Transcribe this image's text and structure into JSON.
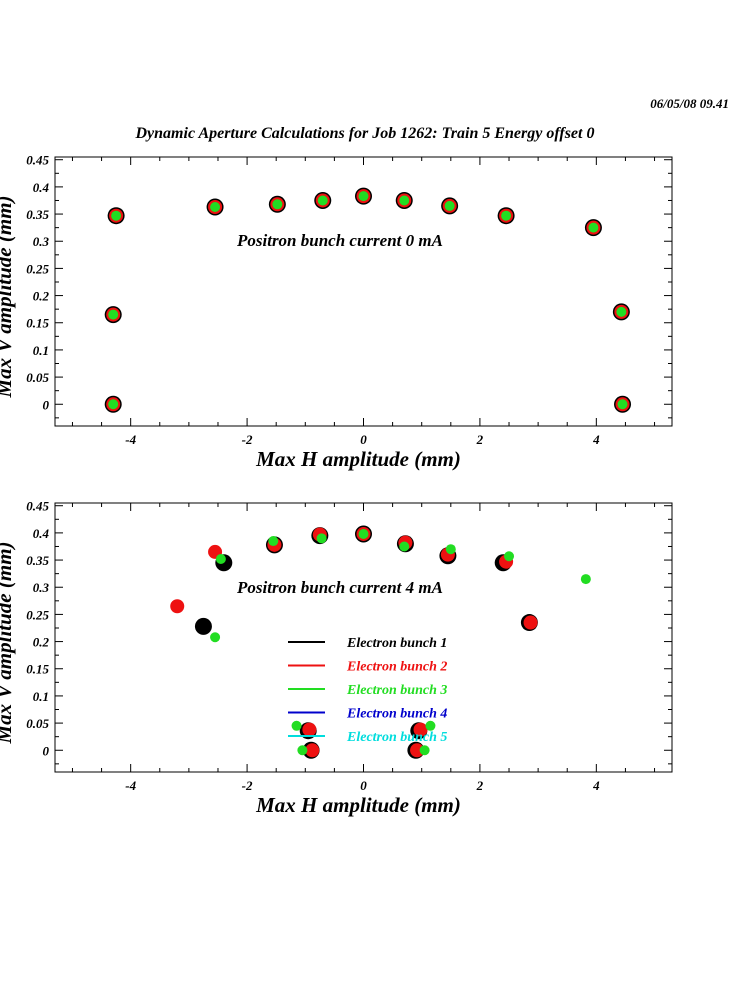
{
  "header": {
    "timestamp": "06/05/08   09.41",
    "title": "Dynamic Aperture Calculations for Job 1262:  Train 5   Energy offset  0"
  },
  "colors": {
    "bunch1": "#000000",
    "bunch2": "#ee1111",
    "bunch3": "#22dd22",
    "bunch4": "#0000cc",
    "bunch5": "#00dddd"
  },
  "chart_data": [
    {
      "type": "scatter",
      "xlabel": "Max H amplitude (mm)",
      "ylabel": "Max V amplitude (mm)",
      "annotation": "Positron bunch current  0 mA",
      "xlim": [
        -5.3,
        5.3
      ],
      "ylim": [
        -0.04,
        0.455
      ],
      "xticks": [
        "-4",
        "-2",
        "0",
        "2",
        "4"
      ],
      "xtick_values": [
        -4,
        -2,
        0,
        2,
        4
      ],
      "yticks": [
        "0",
        "0.05",
        "0.1",
        "0.15",
        "0.2",
        "0.25",
        "0.3",
        "0.35",
        "0.4",
        "0.45"
      ],
      "ytick_values": [
        0,
        0.05,
        0.1,
        0.15,
        0.2,
        0.25,
        0.3,
        0.35,
        0.4,
        0.45
      ],
      "series": [
        {
          "name": "Electron bunch 1",
          "color": "#000000",
          "size": "large",
          "points": [
            [
              -4.3,
              0.0
            ],
            [
              -4.3,
              0.165
            ],
            [
              -4.25,
              0.347
            ],
            [
              -2.55,
              0.363
            ],
            [
              -1.48,
              0.368
            ],
            [
              -0.7,
              0.375
            ],
            [
              0.0,
              0.383
            ],
            [
              0.7,
              0.375
            ],
            [
              1.48,
              0.365
            ],
            [
              2.45,
              0.347
            ],
            [
              3.95,
              0.325
            ],
            [
              4.43,
              0.17
            ],
            [
              4.45,
              0.0
            ]
          ]
        },
        {
          "name": "Electron bunch 2",
          "color": "#ee1111",
          "size": "medium",
          "points": [
            [
              -4.3,
              0.0
            ],
            [
              -4.3,
              0.165
            ],
            [
              -4.25,
              0.347
            ],
            [
              -2.55,
              0.363
            ],
            [
              -1.48,
              0.368
            ],
            [
              -0.7,
              0.375
            ],
            [
              0.0,
              0.383
            ],
            [
              0.7,
              0.375
            ],
            [
              1.48,
              0.365
            ],
            [
              2.45,
              0.347
            ],
            [
              3.95,
              0.325
            ],
            [
              4.43,
              0.17
            ],
            [
              4.45,
              0.0
            ]
          ]
        },
        {
          "name": "Electron bunch 3",
          "color": "#22dd22",
          "size": "small",
          "points": [
            [
              -4.3,
              0.0
            ],
            [
              -4.3,
              0.165
            ],
            [
              -4.25,
              0.347
            ],
            [
              -2.55,
              0.363
            ],
            [
              -1.48,
              0.368
            ],
            [
              -0.7,
              0.375
            ],
            [
              0.0,
              0.383
            ],
            [
              0.7,
              0.375
            ],
            [
              1.48,
              0.365
            ],
            [
              2.45,
              0.347
            ],
            [
              3.95,
              0.325
            ],
            [
              4.43,
              0.17
            ],
            [
              4.45,
              0.0
            ]
          ]
        }
      ]
    },
    {
      "type": "scatter",
      "xlabel": "Max H amplitude (mm)",
      "ylabel": "Max V amplitude (mm)",
      "annotation": "Positron bunch current  4 mA",
      "xlim": [
        -5.3,
        5.3
      ],
      "ylim": [
        -0.04,
        0.455
      ],
      "xticks": [
        "-4",
        "-2",
        "0",
        "2",
        "4"
      ],
      "xtick_values": [
        -4,
        -2,
        0,
        2,
        4
      ],
      "yticks": [
        "0",
        "0.05",
        "0.1",
        "0.15",
        "0.2",
        "0.25",
        "0.3",
        "0.35",
        "0.4",
        "0.45"
      ],
      "ytick_values": [
        0,
        0.05,
        0.1,
        0.15,
        0.2,
        0.25,
        0.3,
        0.35,
        0.4,
        0.45
      ],
      "series": [
        {
          "name": "Electron bunch 1",
          "color": "#000000",
          "size": "large",
          "points": [
            [
              -2.75,
              0.228
            ],
            [
              -2.4,
              0.345
            ],
            [
              -1.53,
              0.378
            ],
            [
              -0.75,
              0.395
            ],
            [
              0.0,
              0.398
            ],
            [
              0.72,
              0.38
            ],
            [
              1.45,
              0.358
            ],
            [
              2.4,
              0.345
            ],
            [
              2.85,
              0.235
            ],
            [
              -0.9,
              0.0
            ],
            [
              -0.95,
              0.036
            ],
            [
              0.9,
              0.0
            ],
            [
              0.95,
              0.036
            ]
          ]
        },
        {
          "name": "Electron bunch 2",
          "color": "#ee1111",
          "size": "medium",
          "points": [
            [
              -3.2,
              0.265
            ],
            [
              -2.55,
              0.365
            ],
            [
              -1.53,
              0.378
            ],
            [
              -0.75,
              0.397
            ],
            [
              0.0,
              0.398
            ],
            [
              0.72,
              0.382
            ],
            [
              1.45,
              0.36
            ],
            [
              2.45,
              0.347
            ],
            [
              2.87,
              0.235
            ],
            [
              -0.88,
              0.0
            ],
            [
              -0.93,
              0.038
            ],
            [
              0.92,
              0.0
            ],
            [
              0.98,
              0.038
            ]
          ]
        },
        {
          "name": "Electron bunch 3",
          "color": "#22dd22",
          "size": "small",
          "points": [
            [
              -2.55,
              0.208
            ],
            [
              -2.45,
              0.352
            ],
            [
              -1.55,
              0.385
            ],
            [
              -0.72,
              0.39
            ],
            [
              0.0,
              0.398
            ],
            [
              0.7,
              0.375
            ],
            [
              1.5,
              0.37
            ],
            [
              2.5,
              0.357
            ],
            [
              3.82,
              0.315
            ],
            [
              -1.15,
              0.045
            ],
            [
              -1.05,
              0.0
            ],
            [
              1.05,
              0.0
            ],
            [
              1.15,
              0.045
            ]
          ]
        }
      ],
      "legend": {
        "placement": "center-left",
        "entries": [
          {
            "label": "Electron bunch 1",
            "color": "#000000"
          },
          {
            "label": "Electron bunch 2",
            "color": "#ee1111"
          },
          {
            "label": "Electron bunch 3",
            "color": "#22dd22"
          },
          {
            "label": "Electron bunch 4",
            "color": "#0000cc"
          },
          {
            "label": "Electron bunch 5",
            "color": "#00dddd"
          }
        ]
      }
    }
  ]
}
